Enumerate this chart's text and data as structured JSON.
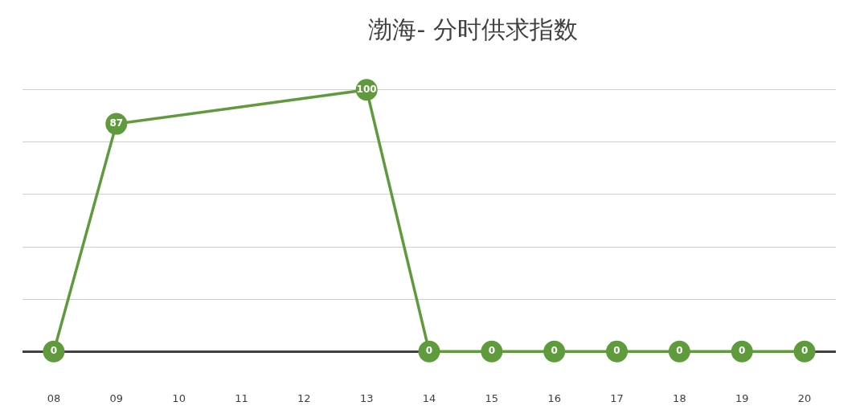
{
  "chart_data": {
    "type": "line",
    "title": "渤海- 分时供求指数",
    "categories": [
      "08",
      "09",
      "10",
      "11",
      "12",
      "13",
      "14",
      "15",
      "16",
      "17",
      "18",
      "19",
      "20"
    ],
    "series": [
      {
        "color": "#5f9a3c",
        "values": [
          0,
          87,
          null,
          null,
          null,
          100,
          0,
          0,
          0,
          0,
          0,
          0,
          0
        ]
      }
    ],
    "yticks": [
      {
        "value": 0,
        "label": null
      },
      {
        "value": 20,
        "label": null
      },
      {
        "value": 40,
        "label": null
      },
      {
        "value": 60,
        "label": null
      },
      {
        "value": 80,
        "label": null
      },
      {
        "value": 100,
        "label": null
      }
    ],
    "grid": "y",
    "tick_labels": "x",
    "marker": "circle",
    "line_style": "solid",
    "data_labels": true,
    "legend": false
  }
}
